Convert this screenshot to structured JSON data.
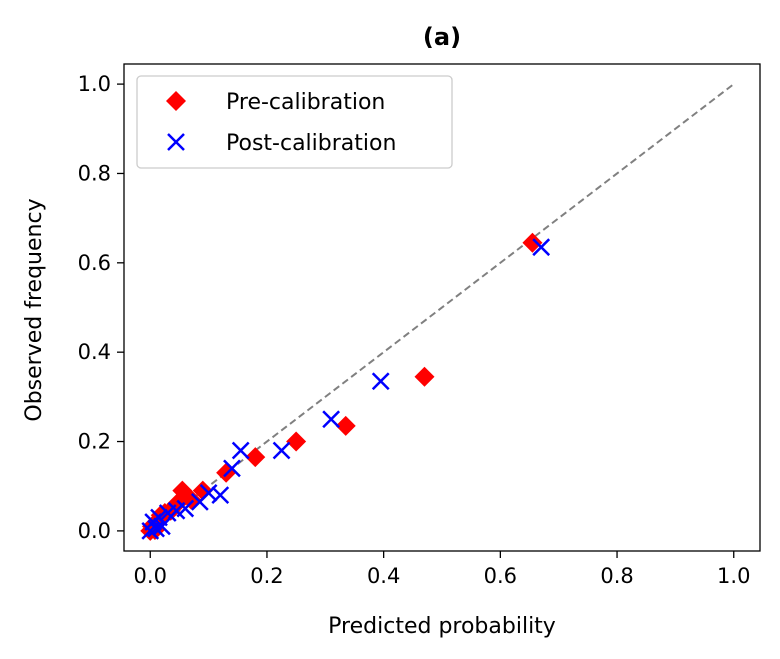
{
  "chart_data": {
    "type": "scatter",
    "title": "(a)",
    "xlabel": "Predicted probability",
    "ylabel": "Observed frequency",
    "xlim": [
      -0.045,
      1.045
    ],
    "ylim": [
      -0.045,
      1.045
    ],
    "xticks": [
      0.0,
      0.2,
      0.4,
      0.6,
      0.8,
      1.0
    ],
    "yticks": [
      0.0,
      0.2,
      0.4,
      0.6,
      0.8,
      1.0
    ],
    "xtick_labels": [
      "0.0",
      "0.2",
      "0.4",
      "0.6",
      "0.8",
      "1.0"
    ],
    "ytick_labels": [
      "0.0",
      "0.2",
      "0.4",
      "0.6",
      "0.8",
      "1.0"
    ],
    "reference_line": {
      "x": [
        0,
        1
      ],
      "y": [
        0,
        1
      ],
      "style": "dashed",
      "color": "#808080"
    },
    "legend_position": "top-left",
    "series": [
      {
        "name": "Pre-calibration",
        "marker": "diamond",
        "color": "#ff0000",
        "x": [
          0.0,
          0.003,
          0.008,
          0.012,
          0.018,
          0.025,
          0.035,
          0.045,
          0.055,
          0.07,
          0.09,
          0.13,
          0.18,
          0.25,
          0.335,
          0.47,
          0.655
        ],
        "y": [
          0.0,
          0.01,
          0.002,
          0.02,
          0.035,
          0.04,
          0.045,
          0.06,
          0.09,
          0.07,
          0.09,
          0.13,
          0.165,
          0.2,
          0.235,
          0.345,
          0.645
        ]
      },
      {
        "name": "Post-calibration",
        "marker": "x",
        "color": "#0000ff",
        "x": [
          0.0,
          0.005,
          0.01,
          0.015,
          0.02,
          0.03,
          0.045,
          0.06,
          0.085,
          0.1,
          0.12,
          0.14,
          0.155,
          0.225,
          0.31,
          0.395,
          0.67
        ],
        "y": [
          0.0,
          0.02,
          0.005,
          0.03,
          0.01,
          0.04,
          0.045,
          0.05,
          0.065,
          0.085,
          0.08,
          0.14,
          0.18,
          0.18,
          0.25,
          0.335,
          0.635
        ]
      }
    ]
  }
}
